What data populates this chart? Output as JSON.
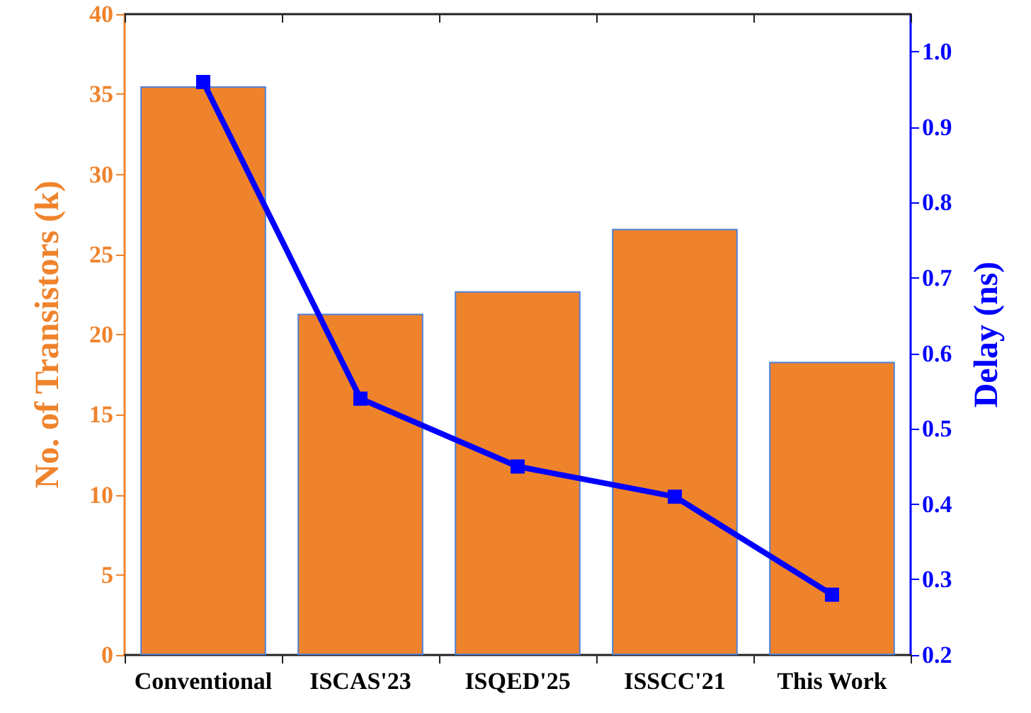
{
  "chart_data": {
    "type": "bar",
    "ylabel": "No. of Transistors (k)",
    "y2label": "Delay (ns)",
    "categories": [
      "Conventional",
      "ISCAS'23",
      "ISQED'25",
      "ISSCC'21",
      "This Work"
    ],
    "series": [
      {
        "color": "#ef832c",
        "values": [
          35.5,
          21.3,
          22.7,
          26.6,
          18.3
        ]
      },
      {
        "type": "line",
        "axis": "y2",
        "color": "#0000ff",
        "marker": "square",
        "values": [
          0.96,
          0.54,
          0.45,
          0.41,
          0.28
        ]
      }
    ],
    "ylim": [
      0,
      40
    ],
    "yticks": [
      0,
      5,
      10,
      15,
      20,
      25,
      30,
      35,
      40
    ],
    "y2lim": [
      0.2,
      1.05
    ],
    "y2ticks": [
      0.2,
      0.3,
      0.4,
      0.5,
      0.6,
      0.7,
      0.8,
      0.9,
      {
        "value": 1,
        "label": "1.0"
      }
    ],
    "grid": false
  }
}
